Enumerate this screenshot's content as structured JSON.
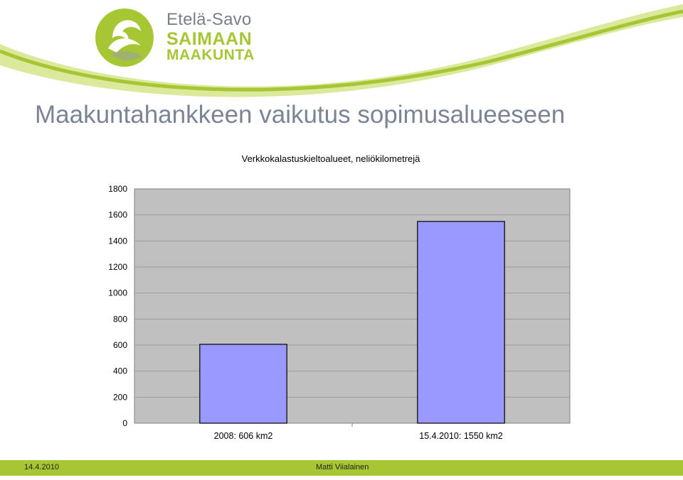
{
  "logo": {
    "line1": "Etelä-Savo",
    "line2": "SAIMAAN",
    "line3": "MAAKUNTA"
  },
  "slide": {
    "title": "Maakuntahankkeen vaikutus sopimusalueeseen"
  },
  "footer": {
    "date": "14.4.2010",
    "author": "Matti Viialainen"
  },
  "colors": {
    "brand_green": "#a6c733",
    "brand_grey": "#7a7f87",
    "plot_bg": "#c0c0c0",
    "bar_fill": "#9999ff"
  },
  "chart_data": {
    "type": "bar",
    "title": "Verkkokalastuskieltoalueet, neliökilometrejä",
    "categories": [
      "2008: 606 km2",
      "15.4.2010: 1550 km2"
    ],
    "values": [
      606,
      1550
    ],
    "ylim": [
      0,
      1800
    ],
    "yticks": [
      0,
      200,
      400,
      600,
      800,
      1000,
      1200,
      1400,
      1600,
      1800
    ],
    "grid": true,
    "legend": "none"
  }
}
